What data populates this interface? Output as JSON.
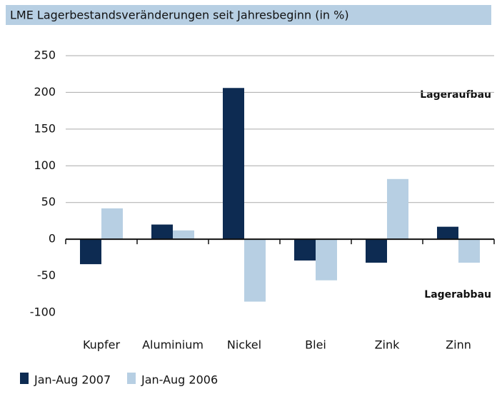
{
  "chart_data": {
    "type": "bar",
    "title": "LME Lagerbestandsveränderungen seit Jahresbeginn (in %)",
    "annotations": [
      "Lageraufbau",
      "Lagerabbau"
    ],
    "categories": [
      "Kupfer",
      "Aluminium",
      "Nickel",
      "Blei",
      "Zink",
      "Zinn"
    ],
    "series": [
      {
        "name": "Jan-Aug 2007",
        "color": "#0d2b52",
        "values": [
          -34,
          20,
          206,
          -29,
          -32,
          17
        ]
      },
      {
        "name": "Jan-Aug 2006",
        "color": "#b7cfe3",
        "values": [
          42,
          12,
          -85,
          -56,
          82,
          -32
        ]
      }
    ],
    "ylim": [
      -100,
      250
    ],
    "yticks": [
      -100,
      -50,
      0,
      50,
      100,
      150,
      200,
      250
    ],
    "grid": true
  }
}
